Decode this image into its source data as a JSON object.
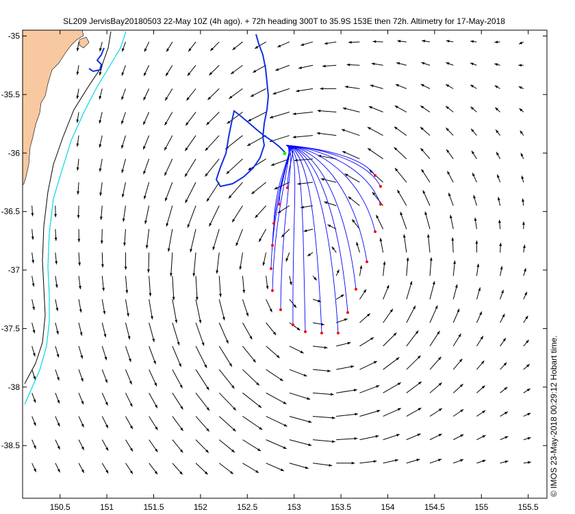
{
  "title": "SL209 JervisBay20180503 22-May 10Z (4h ago). + 72h heading 300T to 35.9S 153E then 72h. Altimetry for 17-May-2018",
  "credit": "© IMOS 23-May-2018 00:29:12 Hobart time.",
  "axes": {
    "xlim": [
      150.1,
      155.7
    ],
    "ylim": [
      -38.95,
      -34.95
    ],
    "xticks": [
      150.5,
      151,
      151.5,
      152,
      152.5,
      153,
      153.5,
      154,
      154.5,
      155,
      155.5
    ],
    "yticks": [
      -35,
      -35.5,
      -36,
      -36.5,
      -37,
      -37.5,
      -38,
      -38.5
    ],
    "xtick_labels": [
      "150.5",
      "151",
      "151.5",
      "152",
      "152.5",
      "153",
      "153.5",
      "154",
      "154.5",
      "155",
      "155.5"
    ],
    "ytick_labels": [
      "-35",
      "-35.5",
      "-36",
      "-36.5",
      "-37",
      "-37.5",
      "-38",
      "-38.5"
    ]
  },
  "colors": {
    "land": "#f8c9a0",
    "coastline": "#000000",
    "isobath_deep": "#000000",
    "isobath_shallow": "#00d8e0",
    "glider_track": "#1030e0",
    "forecast_paths": "#0000ff",
    "forecast_end": "#ff0000",
    "current_arrows": "#000000",
    "glider_position": "#00ff00"
  },
  "features": {
    "land": "NSW south coast (Jervis Bay)",
    "glider_track": "past track of glider SL209",
    "forecast_paths": "72h forecast drift paths with red end points",
    "current_field": "altimetry surface current vectors",
    "eddy_centre": [
      153.1,
      -37.05
    ]
  }
}
